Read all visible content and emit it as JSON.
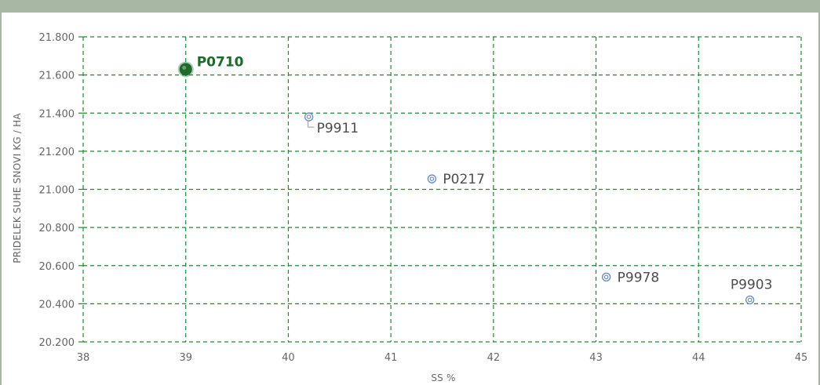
{
  "chart_data": {
    "type": "scatter",
    "title": "",
    "xlabel": "SS %",
    "ylabel": "PRIDELEK SUHE SNOVI KG / HA",
    "xlim": [
      38,
      45
    ],
    "ylim": [
      20200,
      21800
    ],
    "x_ticks": [
      "38",
      "39",
      "40",
      "41",
      "42",
      "43",
      "44",
      "45"
    ],
    "y_ticks": [
      "20.200",
      "20.400",
      "20.600",
      "20.800",
      "21.000",
      "21.200",
      "21.400",
      "21.600",
      "21.800"
    ],
    "grid": true,
    "points": [
      {
        "label": "P0710",
        "x": 39.0,
        "y": 21630,
        "highlight": true
      },
      {
        "label": "P9911",
        "x": 40.2,
        "y": 21380,
        "highlight": false
      },
      {
        "label": "P0217",
        "x": 41.4,
        "y": 21055,
        "highlight": false
      },
      {
        "label": "P9978",
        "x": 43.1,
        "y": 20540,
        "highlight": false
      },
      {
        "label": "P9903",
        "x": 44.5,
        "y": 20420,
        "highlight": false
      }
    ],
    "colors": {
      "frame": "#a7b7a3",
      "grid": "#1f8a2e",
      "highlight": "#1c6b2b",
      "marker": "#6f8fc4"
    }
  }
}
